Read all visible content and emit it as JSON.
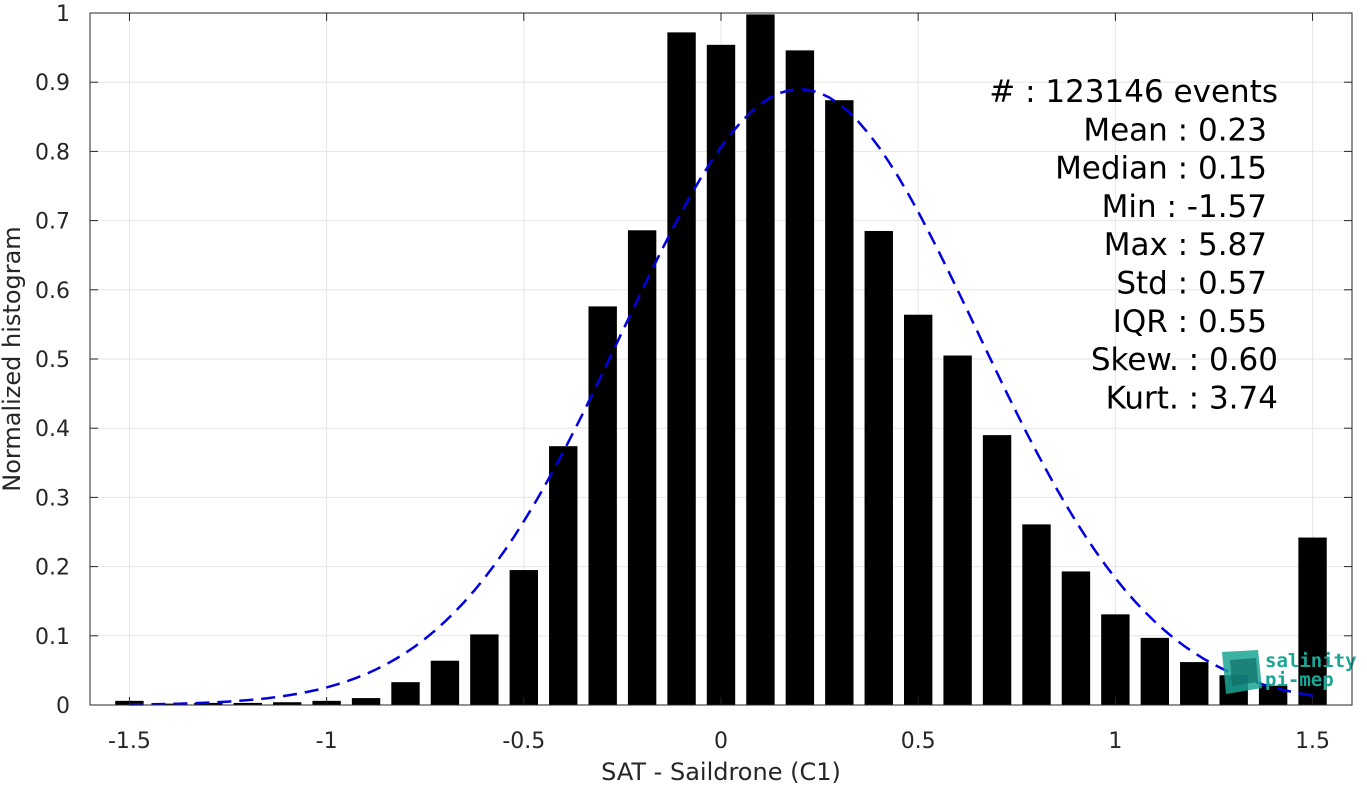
{
  "chart_data": {
    "type": "bar",
    "xlabel": "SAT - Saildrone (C1)",
    "ylabel": "Normalized histogram",
    "xlim": [
      -1.6,
      1.6
    ],
    "ylim": [
      0,
      1
    ],
    "xticks": [
      -1.5,
      -1,
      -0.5,
      0,
      0.5,
      1,
      1.5
    ],
    "xtick_labels": [
      "-1.5",
      "-1",
      "-0.5",
      "0",
      "0.5",
      "1",
      "1.5"
    ],
    "yticks": [
      0,
      0.1,
      0.2,
      0.3,
      0.4,
      0.5,
      0.6,
      0.7,
      0.8,
      0.9,
      1
    ],
    "ytick_labels": [
      "0",
      "0.1",
      "0.2",
      "0.3",
      "0.4",
      "0.5",
      "0.6",
      "0.7",
      "0.8",
      "0.9",
      "1"
    ],
    "grid": true,
    "bar_color": "#000000",
    "fit_color": "#0000e0",
    "x": [
      -1.5,
      -1.4,
      -1.3,
      -1.2,
      -1.1,
      -1.0,
      -0.9,
      -0.8,
      -0.7,
      -0.6,
      -0.5,
      -0.4,
      -0.3,
      -0.2,
      -0.1,
      0.0,
      0.1,
      0.2,
      0.3,
      0.4,
      0.5,
      0.6,
      0.7,
      0.8,
      0.9,
      1.0,
      1.1,
      1.2,
      1.3,
      1.4,
      1.5
    ],
    "values": [
      0.006,
      0.002,
      0.003,
      0.003,
      0.004,
      0.006,
      0.01,
      0.033,
      0.064,
      0.102,
      0.195,
      0.374,
      0.576,
      0.686,
      0.972,
      0.954,
      0.998,
      0.946,
      0.874,
      0.685,
      0.564,
      0.505,
      0.39,
      0.261,
      0.193,
      0.131,
      0.097,
      0.062,
      0.043,
      0.028,
      0.242
    ],
    "fit": {
      "style": "dashed",
      "mean": 0.2,
      "std": 0.45,
      "peak": 0.89,
      "x_range": [
        -1.5,
        1.5
      ]
    },
    "stats_lines": [
      "#  : 123146 events",
      "Mean : 0.23",
      "Median : 0.15",
      "Min : -1.57",
      "Max : 5.87",
      "Std : 0.57",
      "IQR : 0.55",
      "Skew. : 0.60",
      "Kurt. : 3.74"
    ]
  },
  "logo": {
    "line1": "salinity",
    "line2": "pi-mep",
    "color": "#1aa596"
  }
}
